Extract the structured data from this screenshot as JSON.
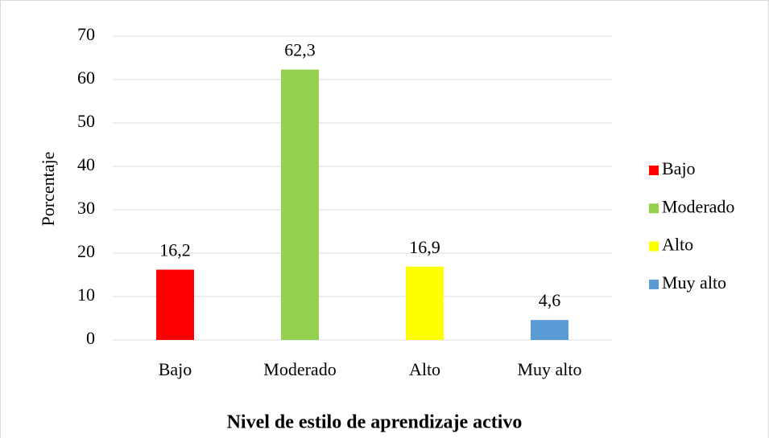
{
  "chart_data": {
    "type": "bar",
    "xlabel": "Nivel de estilo de aprendizaje activo",
    "ylabel": "Porcentaje",
    "categories": [
      "Bajo",
      "Moderado",
      "Alto",
      "Muy alto"
    ],
    "values": [
      16.2,
      62.3,
      16.9,
      4.6
    ],
    "value_labels": [
      "16,2",
      "62,3",
      "16,9",
      "4,6"
    ],
    "colors": [
      "#ff0000",
      "#92d050",
      "#ffff00",
      "#5b9bd5"
    ],
    "ylim": [
      0,
      70
    ],
    "yticks": [
      0,
      10,
      20,
      30,
      40,
      50,
      60,
      70
    ],
    "grid": true,
    "legend": "right"
  }
}
